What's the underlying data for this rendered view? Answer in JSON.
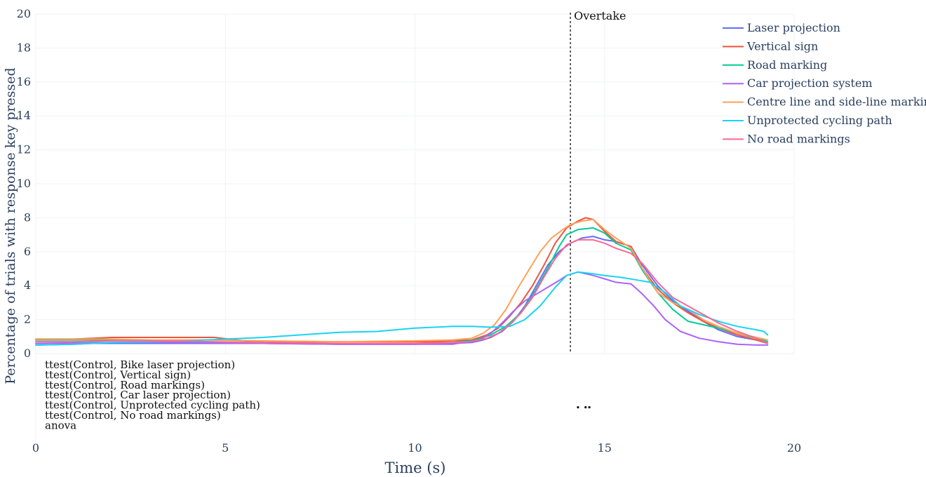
{
  "chart_data": {
    "type": "line",
    "title": "",
    "xlabel": "Time (s)",
    "ylabel": "Percentage of trials with response key pressed",
    "xlim": [
      0,
      20
    ],
    "ylim": [
      0,
      20
    ],
    "x_ticks": [
      0,
      5,
      10,
      15,
      20
    ],
    "y_ticks": [
      0,
      2,
      4,
      6,
      8,
      10,
      12,
      14,
      16,
      18,
      20
    ],
    "grid": true,
    "legend_position": "top-right",
    "annotation": {
      "label": "Overtake",
      "x": 14.1
    },
    "significance_rows": [
      "ttest(Control, Bike laser projection)",
      "ttest(Control, Vertical sign)",
      "ttest(Control, Road markings)",
      "ttest(Control, Car laser projection)",
      "ttest(Control, Unprotected cycling path)",
      "ttest(Control, No road markings)",
      "anova"
    ],
    "significance_markers": [
      {
        "row": 4,
        "x": [
          14.3,
          14.5,
          14.6
        ]
      }
    ],
    "series": [
      {
        "name": "Laser projection",
        "color": "#636efa",
        "x": [
          0,
          1,
          1.5,
          3,
          4.5,
          6,
          8,
          10,
          11,
          11.5,
          11.8,
          12,
          12.3,
          12.6,
          12.9,
          13.2,
          13.5,
          13.8,
          14.1,
          14.4,
          14.7,
          15,
          15.3,
          15.7,
          16,
          16.4,
          16.8,
          17.2,
          17.6,
          18,
          18.5,
          19,
          19.3
        ],
        "values": [
          0.5,
          0.55,
          0.6,
          0.6,
          0.6,
          0.6,
          0.55,
          0.55,
          0.6,
          0.65,
          0.8,
          0.95,
          1.3,
          1.9,
          2.8,
          4.0,
          5.2,
          6.0,
          6.5,
          6.8,
          6.9,
          6.7,
          6.6,
          6.3,
          5.2,
          4.0,
          3.1,
          2.5,
          1.9,
          1.4,
          1.0,
          0.8,
          0.6
        ]
      },
      {
        "name": "Vertical sign",
        "color": "#EF553B",
        "x": [
          0,
          1,
          1.5,
          2,
          3,
          4,
          4.7,
          5.5,
          7,
          9,
          10.5,
          11.5,
          11.9,
          12.2,
          12.5,
          12.8,
          13.1,
          13.4,
          13.7,
          14.0,
          14.3,
          14.5,
          14.7,
          15,
          15.3,
          15.7,
          16,
          16.4,
          16.8,
          17.2,
          17.6,
          18,
          18.5,
          19,
          19.3
        ],
        "values": [
          0.85,
          0.85,
          0.9,
          0.95,
          0.95,
          0.95,
          0.95,
          0.75,
          0.7,
          0.7,
          0.7,
          0.8,
          1.1,
          1.5,
          2.2,
          3.0,
          4.0,
          5.2,
          6.5,
          7.4,
          7.8,
          8.0,
          7.9,
          7.2,
          6.6,
          6.3,
          5.0,
          3.8,
          3.0,
          2.4,
          1.9,
          1.5,
          1.1,
          0.8,
          0.6
        ]
      },
      {
        "name": "Road marking",
        "color": "#00cc96",
        "x": [
          0,
          1,
          2,
          3,
          4.5,
          6,
          8,
          10,
          11,
          11.6,
          12,
          12.4,
          12.8,
          13.2,
          13.5,
          13.8,
          14.0,
          14.3,
          14.7,
          15,
          15.3,
          15.7,
          16,
          16.4,
          16.8,
          17.2,
          17.6,
          18,
          18.5,
          19,
          19.3
        ],
        "values": [
          0.8,
          0.8,
          0.8,
          0.75,
          0.7,
          0.65,
          0.6,
          0.6,
          0.65,
          0.8,
          1.1,
          1.6,
          2.4,
          3.8,
          5.0,
          6.3,
          7.0,
          7.3,
          7.4,
          7.1,
          6.5,
          6.1,
          4.9,
          3.6,
          2.6,
          1.9,
          1.7,
          1.5,
          1.2,
          0.9,
          0.7
        ]
      },
      {
        "name": "Car projection system",
        "color": "#ab63fa",
        "x": [
          0,
          2,
          4,
          6,
          8,
          10,
          11,
          11.7,
          12,
          12.3,
          12.6,
          12.9,
          13.2,
          13.5,
          13.8,
          14.0,
          14.3,
          14.7,
          15,
          15.3,
          15.7,
          16,
          16.3,
          16.6,
          17,
          17.5,
          18,
          18.5,
          19,
          19.3
        ],
        "values": [
          0.6,
          0.65,
          0.65,
          0.6,
          0.55,
          0.55,
          0.55,
          0.8,
          1.2,
          1.8,
          2.5,
          3.1,
          3.5,
          3.9,
          4.3,
          4.6,
          4.8,
          4.6,
          4.4,
          4.2,
          4.1,
          3.5,
          2.8,
          2.0,
          1.3,
          0.9,
          0.7,
          0.55,
          0.5,
          0.5
        ]
      },
      {
        "name": "Centre line and side-line markings",
        "color": "#FFA15A",
        "x": [
          0,
          1,
          2,
          3,
          4.5,
          6,
          8,
          10,
          11,
          11.5,
          11.8,
          12.1,
          12.4,
          12.7,
          13.0,
          13.3,
          13.6,
          13.9,
          14.1,
          14.4,
          14.7,
          15,
          15.3,
          15.7,
          16,
          16.4,
          16.8,
          17.2,
          17.6,
          18,
          18.5,
          19,
          19.3
        ],
        "values": [
          0.85,
          0.85,
          0.85,
          0.8,
          0.8,
          0.75,
          0.7,
          0.75,
          0.8,
          0.9,
          1.2,
          1.7,
          2.6,
          3.8,
          4.9,
          6.0,
          6.8,
          7.3,
          7.6,
          7.8,
          7.9,
          7.3,
          6.8,
          6.2,
          5.0,
          3.6,
          3.0,
          2.6,
          2.0,
          1.6,
          1.2,
          0.95,
          0.8
        ]
      },
      {
        "name": "Unprotected cycling path",
        "color": "#19d3f3",
        "x": [
          0,
          1,
          2,
          3,
          4,
          5,
          6,
          7,
          8,
          9,
          10,
          10.5,
          11,
          11.5,
          12,
          12.5,
          12.9,
          13.3,
          13.7,
          14.0,
          14.3,
          14.7,
          15,
          15.4,
          15.8,
          16.2,
          16.6,
          17,
          17.5,
          18,
          18.5,
          19,
          19.2,
          19.3
        ],
        "values": [
          0.5,
          0.55,
          0.65,
          0.7,
          0.75,
          0.85,
          0.95,
          1.1,
          1.25,
          1.3,
          1.5,
          1.55,
          1.6,
          1.6,
          1.55,
          1.6,
          2.0,
          2.8,
          3.9,
          4.6,
          4.8,
          4.7,
          4.6,
          4.5,
          4.35,
          4.2,
          3.6,
          2.8,
          2.3,
          1.9,
          1.6,
          1.4,
          1.3,
          1.1
        ]
      },
      {
        "name": "No road markings",
        "color": "#FF6692",
        "x": [
          0,
          1,
          2,
          3,
          4.5,
          6,
          8,
          10,
          11,
          11.5,
          11.9,
          12.2,
          12.5,
          12.8,
          13.1,
          13.4,
          13.7,
          14.0,
          14.3,
          14.7,
          15,
          15.3,
          15.7,
          16,
          16.4,
          16.8,
          17.2,
          17.6,
          18,
          18.5,
          19,
          19.3
        ],
        "values": [
          0.7,
          0.7,
          0.75,
          0.75,
          0.7,
          0.65,
          0.6,
          0.6,
          0.65,
          0.7,
          0.9,
          1.2,
          1.7,
          2.4,
          3.3,
          4.5,
          5.6,
          6.4,
          6.7,
          6.7,
          6.5,
          6.2,
          5.9,
          5.3,
          4.2,
          3.3,
          2.8,
          2.3,
          1.8,
          1.3,
          0.9,
          0.6
        ]
      }
    ]
  }
}
